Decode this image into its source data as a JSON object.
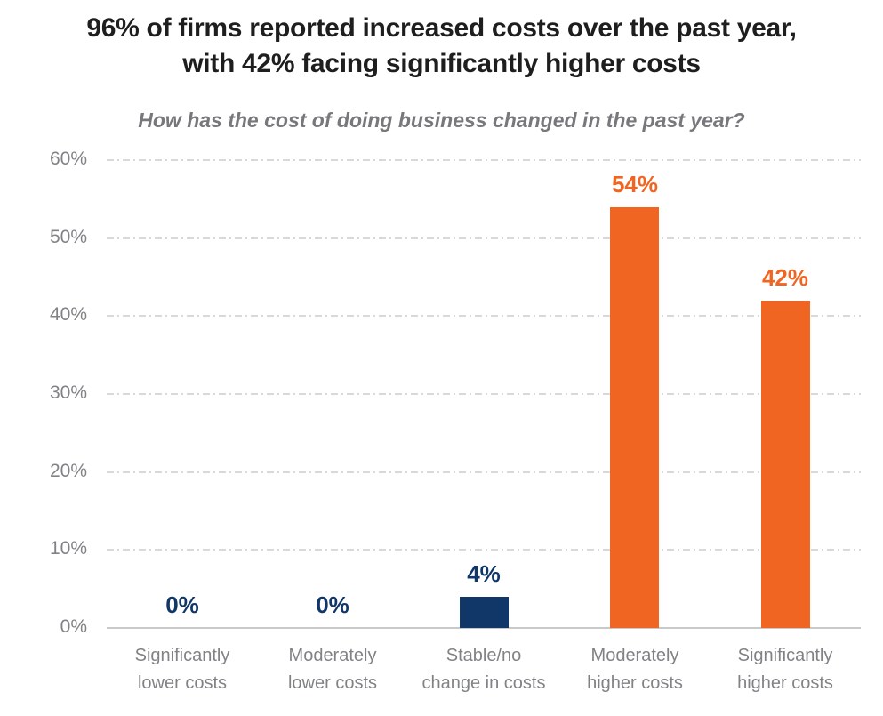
{
  "page": {
    "title_line1": "96% of firms reported increased costs over the past year,",
    "title_line2": "with 42% facing significantly higher costs",
    "subtitle": "How has the cost of doing business changed in the past year?"
  },
  "colors": {
    "title_text": "#1e1e1e",
    "subtitle_text": "#77787b",
    "navy": "#103767",
    "orange": "#f16522",
    "grid": "#d9d9d9",
    "baseline": "#c8c9cb",
    "axis_text": "#808285"
  },
  "chart_data": {
    "type": "bar",
    "title": "96% of firms reported increased costs over the past year, with 42% facing significantly higher costs",
    "subtitle": "How has the cost of doing business changed in the past year?",
    "categories": [
      "Significantly lower costs",
      "Moderately lower costs",
      "Stable/no change in costs",
      "Moderately higher costs",
      "Significantly higher costs"
    ],
    "category_lines": [
      [
        "Significantly",
        "lower costs"
      ],
      [
        "Moderately",
        "lower costs"
      ],
      [
        "Stable/no",
        "change in costs"
      ],
      [
        "Moderately",
        "higher costs"
      ],
      [
        "Significantly",
        "higher costs"
      ]
    ],
    "values": [
      0,
      0,
      4,
      54,
      42
    ],
    "data_labels": [
      "0%",
      "0%",
      "4%",
      "54%",
      "42%"
    ],
    "bar_colors": [
      "#103767",
      "#103767",
      "#103767",
      "#f16522",
      "#f16522"
    ],
    "label_colors": [
      "#103767",
      "#103767",
      "#103767",
      "#f16522",
      "#f16522"
    ],
    "xlabel": "",
    "ylabel": "",
    "ylim": [
      0,
      60
    ],
    "yticks": [
      0,
      10,
      20,
      30,
      40,
      50,
      60
    ],
    "ytick_labels": [
      "0%",
      "10%",
      "20%",
      "30%",
      "40%",
      "50%",
      "60%"
    ],
    "grid": "horizontal-dashed",
    "legend": "none"
  }
}
